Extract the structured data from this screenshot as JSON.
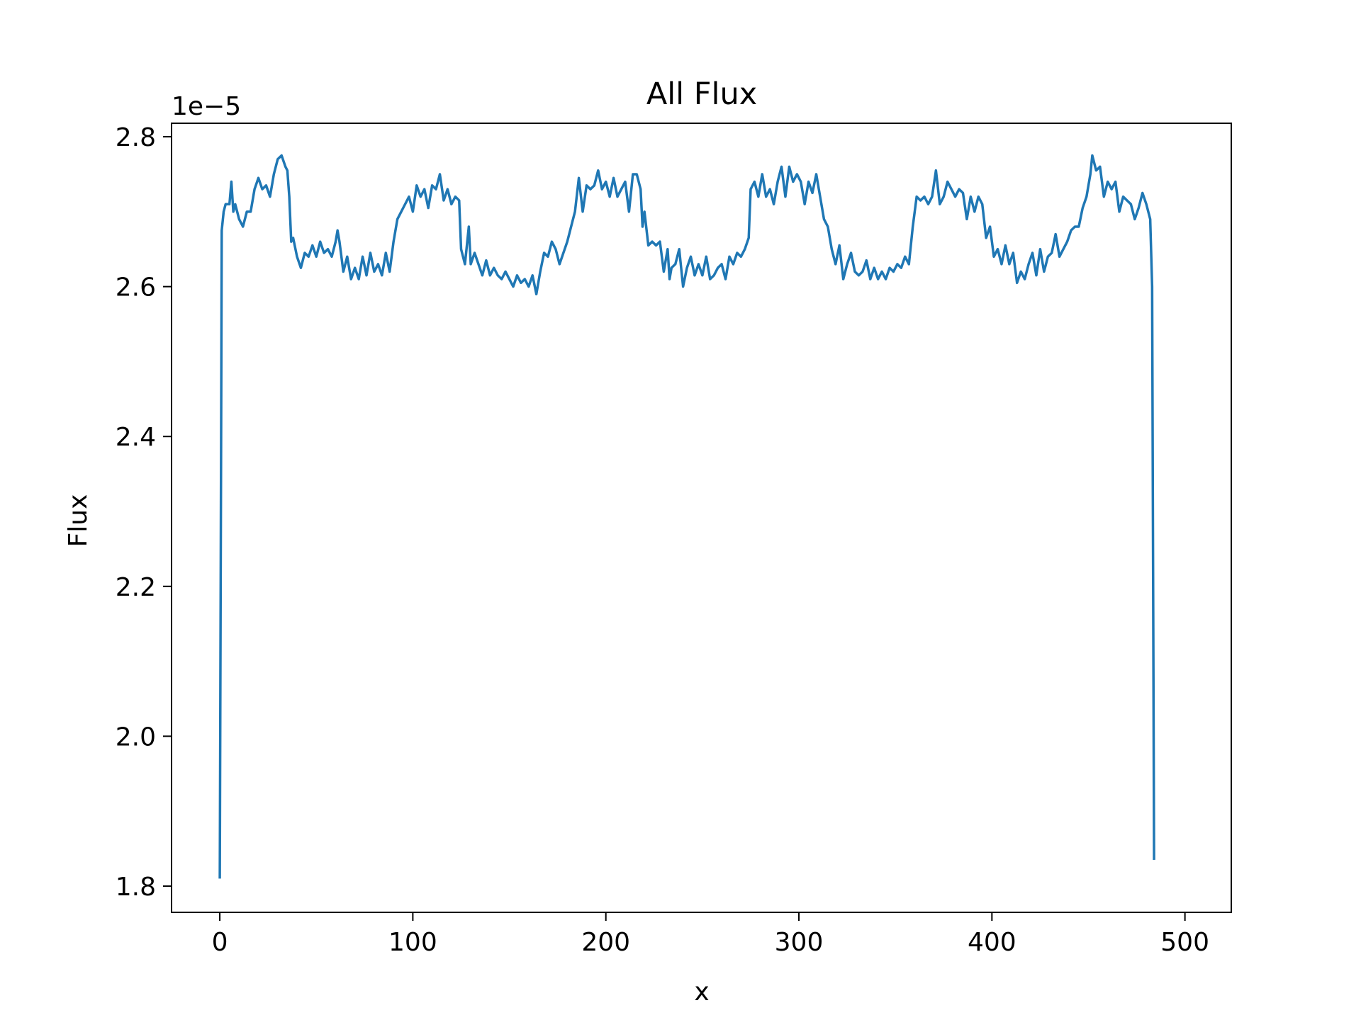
{
  "chart_data": {
    "type": "line",
    "title": "All Flux",
    "xlabel": "x",
    "ylabel": "Flux",
    "y_offset_label": "1e−5",
    "xlim": [
      -25,
      524
    ],
    "ylim": [
      1.765,
      2.818
    ],
    "x_ticks": [
      0,
      100,
      200,
      300,
      400,
      500
    ],
    "x_tick_labels": [
      "0",
      "100",
      "200",
      "300",
      "400",
      "500"
    ],
    "y_ticks": [
      1.8,
      2.0,
      2.2,
      2.4,
      2.6,
      2.8
    ],
    "y_tick_labels": [
      "1.8",
      "2.0",
      "2.2",
      "2.4",
      "2.6",
      "2.8"
    ],
    "grid": false,
    "line_color": "#1f77b4",
    "series": [
      {
        "points": [
          [
            0,
            1.81
          ],
          [
            1,
            2.675
          ],
          [
            2,
            2.7
          ],
          [
            3,
            2.71
          ],
          [
            5,
            2.71
          ],
          [
            6,
            2.74
          ],
          [
            7,
            2.7
          ],
          [
            8,
            2.71
          ],
          [
            10,
            2.69
          ],
          [
            12,
            2.68
          ],
          [
            14,
            2.7
          ],
          [
            16,
            2.7
          ],
          [
            18,
            2.73
          ],
          [
            20,
            2.745
          ],
          [
            22,
            2.73
          ],
          [
            24,
            2.735
          ],
          [
            26,
            2.72
          ],
          [
            28,
            2.75
          ],
          [
            30,
            2.77
          ],
          [
            32,
            2.775
          ],
          [
            34,
            2.76
          ],
          [
            35,
            2.755
          ],
          [
            36,
            2.72
          ],
          [
            37,
            2.66
          ],
          [
            38,
            2.665
          ],
          [
            40,
            2.64
          ],
          [
            42,
            2.625
          ],
          [
            44,
            2.645
          ],
          [
            46,
            2.64
          ],
          [
            48,
            2.655
          ],
          [
            50,
            2.64
          ],
          [
            52,
            2.66
          ],
          [
            54,
            2.645
          ],
          [
            56,
            2.65
          ],
          [
            58,
            2.64
          ],
          [
            60,
            2.66
          ],
          [
            61,
            2.675
          ],
          [
            62,
            2.66
          ],
          [
            64,
            2.62
          ],
          [
            66,
            2.64
          ],
          [
            68,
            2.61
          ],
          [
            70,
            2.625
          ],
          [
            72,
            2.61
          ],
          [
            74,
            2.64
          ],
          [
            76,
            2.615
          ],
          [
            78,
            2.645
          ],
          [
            80,
            2.62
          ],
          [
            82,
            2.63
          ],
          [
            84,
            2.615
          ],
          [
            86,
            2.645
          ],
          [
            88,
            2.62
          ],
          [
            90,
            2.66
          ],
          [
            92,
            2.69
          ],
          [
            94,
            2.7
          ],
          [
            96,
            2.71
          ],
          [
            98,
            2.72
          ],
          [
            100,
            2.7
          ],
          [
            102,
            2.735
          ],
          [
            104,
            2.72
          ],
          [
            106,
            2.73
          ],
          [
            108,
            2.705
          ],
          [
            110,
            2.735
          ],
          [
            112,
            2.73
          ],
          [
            114,
            2.75
          ],
          [
            116,
            2.715
          ],
          [
            118,
            2.73
          ],
          [
            120,
            2.71
          ],
          [
            122,
            2.72
          ],
          [
            124,
            2.715
          ],
          [
            125,
            2.65
          ],
          [
            127,
            2.63
          ],
          [
            129,
            2.68
          ],
          [
            130,
            2.63
          ],
          [
            132,
            2.645
          ],
          [
            134,
            2.63
          ],
          [
            136,
            2.615
          ],
          [
            138,
            2.635
          ],
          [
            140,
            2.615
          ],
          [
            142,
            2.625
          ],
          [
            144,
            2.615
          ],
          [
            146,
            2.61
          ],
          [
            148,
            2.62
          ],
          [
            150,
            2.61
          ],
          [
            152,
            2.6
          ],
          [
            154,
            2.615
          ],
          [
            156,
            2.605
          ],
          [
            158,
            2.61
          ],
          [
            160,
            2.6
          ],
          [
            162,
            2.615
          ],
          [
            164,
            2.59
          ],
          [
            166,
            2.62
          ],
          [
            168,
            2.645
          ],
          [
            170,
            2.64
          ],
          [
            172,
            2.66
          ],
          [
            174,
            2.65
          ],
          [
            176,
            2.63
          ],
          [
            178,
            2.645
          ],
          [
            180,
            2.66
          ],
          [
            182,
            2.68
          ],
          [
            184,
            2.7
          ],
          [
            186,
            2.745
          ],
          [
            188,
            2.7
          ],
          [
            190,
            2.735
          ],
          [
            192,
            2.73
          ],
          [
            194,
            2.735
          ],
          [
            196,
            2.755
          ],
          [
            198,
            2.73
          ],
          [
            200,
            2.74
          ],
          [
            202,
            2.72
          ],
          [
            204,
            2.745
          ],
          [
            206,
            2.72
          ],
          [
            208,
            2.73
          ],
          [
            210,
            2.74
          ],
          [
            212,
            2.7
          ],
          [
            214,
            2.75
          ],
          [
            216,
            2.75
          ],
          [
            218,
            2.73
          ],
          [
            219,
            2.68
          ],
          [
            220,
            2.7
          ],
          [
            222,
            2.655
          ],
          [
            224,
            2.66
          ],
          [
            226,
            2.655
          ],
          [
            228,
            2.66
          ],
          [
            230,
            2.62
          ],
          [
            232,
            2.65
          ],
          [
            233,
            2.61
          ],
          [
            234,
            2.625
          ],
          [
            236,
            2.63
          ],
          [
            238,
            2.65
          ],
          [
            240,
            2.6
          ],
          [
            242,
            2.625
          ],
          [
            244,
            2.64
          ],
          [
            246,
            2.615
          ],
          [
            248,
            2.63
          ],
          [
            250,
            2.615
          ],
          [
            252,
            2.64
          ],
          [
            254,
            2.61
          ],
          [
            256,
            2.615
          ],
          [
            258,
            2.625
          ],
          [
            260,
            2.63
          ],
          [
            262,
            2.61
          ],
          [
            264,
            2.64
          ],
          [
            266,
            2.63
          ],
          [
            268,
            2.645
          ],
          [
            270,
            2.64
          ],
          [
            272,
            2.65
          ],
          [
            274,
            2.665
          ],
          [
            275,
            2.73
          ],
          [
            277,
            2.74
          ],
          [
            279,
            2.72
          ],
          [
            281,
            2.75
          ],
          [
            283,
            2.72
          ],
          [
            285,
            2.73
          ],
          [
            287,
            2.71
          ],
          [
            289,
            2.74
          ],
          [
            291,
            2.76
          ],
          [
            293,
            2.72
          ],
          [
            295,
            2.76
          ],
          [
            297,
            2.74
          ],
          [
            299,
            2.75
          ],
          [
            301,
            2.74
          ],
          [
            303,
            2.71
          ],
          [
            305,
            2.74
          ],
          [
            307,
            2.725
          ],
          [
            309,
            2.75
          ],
          [
            311,
            2.72
          ],
          [
            313,
            2.69
          ],
          [
            315,
            2.68
          ],
          [
            317,
            2.65
          ],
          [
            319,
            2.63
          ],
          [
            321,
            2.655
          ],
          [
            323,
            2.61
          ],
          [
            325,
            2.63
          ],
          [
            327,
            2.645
          ],
          [
            329,
            2.62
          ],
          [
            331,
            2.615
          ],
          [
            333,
            2.62
          ],
          [
            335,
            2.635
          ],
          [
            337,
            2.61
          ],
          [
            339,
            2.625
          ],
          [
            341,
            2.61
          ],
          [
            343,
            2.62
          ],
          [
            345,
            2.61
          ],
          [
            347,
            2.625
          ],
          [
            349,
            2.62
          ],
          [
            351,
            2.63
          ],
          [
            353,
            2.625
          ],
          [
            355,
            2.64
          ],
          [
            357,
            2.63
          ],
          [
            359,
            2.68
          ],
          [
            361,
            2.72
          ],
          [
            363,
            2.715
          ],
          [
            365,
            2.72
          ],
          [
            367,
            2.71
          ],
          [
            369,
            2.72
          ],
          [
            371,
            2.755
          ],
          [
            373,
            2.71
          ],
          [
            375,
            2.72
          ],
          [
            377,
            2.74
          ],
          [
            379,
            2.73
          ],
          [
            381,
            2.72
          ],
          [
            383,
            2.73
          ],
          [
            385,
            2.725
          ],
          [
            387,
            2.69
          ],
          [
            389,
            2.72
          ],
          [
            391,
            2.7
          ],
          [
            393,
            2.72
          ],
          [
            395,
            2.71
          ],
          [
            397,
            2.665
          ],
          [
            399,
            2.68
          ],
          [
            401,
            2.64
          ],
          [
            403,
            2.65
          ],
          [
            405,
            2.63
          ],
          [
            407,
            2.655
          ],
          [
            409,
            2.63
          ],
          [
            411,
            2.645
          ],
          [
            413,
            2.605
          ],
          [
            415,
            2.62
          ],
          [
            417,
            2.61
          ],
          [
            419,
            2.63
          ],
          [
            421,
            2.645
          ],
          [
            423,
            2.615
          ],
          [
            425,
            2.65
          ],
          [
            427,
            2.62
          ],
          [
            429,
            2.64
          ],
          [
            431,
            2.645
          ],
          [
            433,
            2.67
          ],
          [
            435,
            2.64
          ],
          [
            437,
            2.65
          ],
          [
            439,
            2.66
          ],
          [
            441,
            2.675
          ],
          [
            443,
            2.68
          ],
          [
            445,
            2.68
          ],
          [
            447,
            2.705
          ],
          [
            449,
            2.72
          ],
          [
            451,
            2.75
          ],
          [
            452,
            2.775
          ],
          [
            454,
            2.755
          ],
          [
            456,
            2.76
          ],
          [
            458,
            2.72
          ],
          [
            460,
            2.74
          ],
          [
            462,
            2.73
          ],
          [
            464,
            2.74
          ],
          [
            466,
            2.7
          ],
          [
            468,
            2.72
          ],
          [
            470,
            2.715
          ],
          [
            472,
            2.71
          ],
          [
            474,
            2.69
          ],
          [
            476,
            2.705
          ],
          [
            478,
            2.725
          ],
          [
            480,
            2.71
          ],
          [
            482,
            2.69
          ],
          [
            483,
            2.6
          ],
          [
            484,
            1.835
          ]
        ]
      }
    ]
  }
}
